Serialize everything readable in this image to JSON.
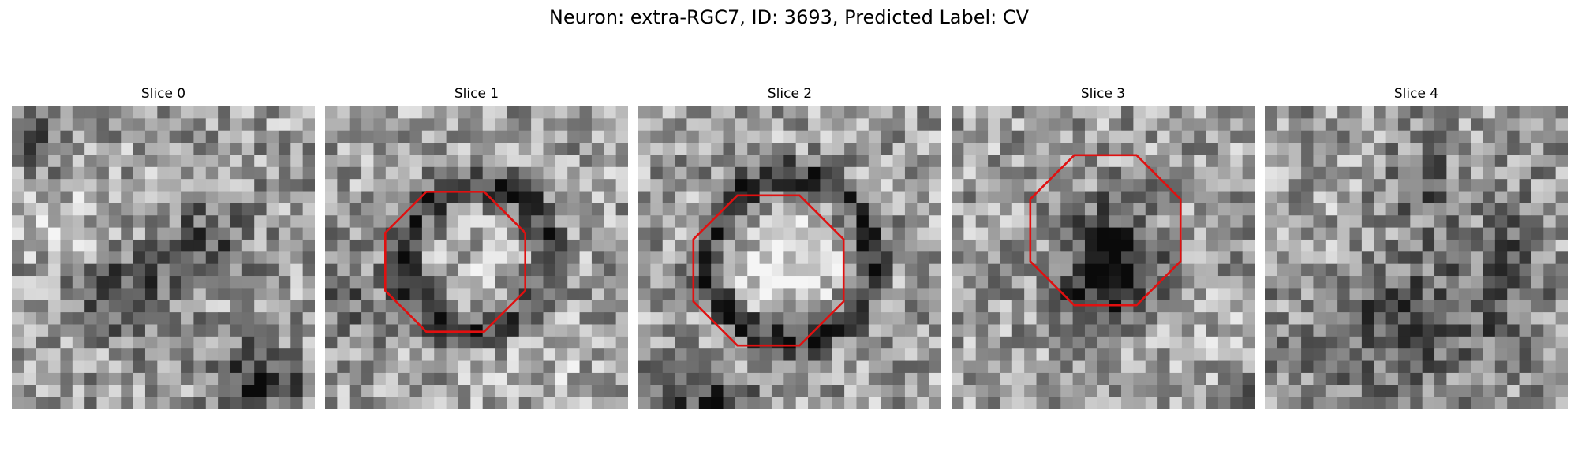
{
  "figure": {
    "title": "Neuron: extra-RGC7, ID: 3693, Predicted Label: CV"
  },
  "colors": {
    "roi_outline": "#e01010",
    "background": "#ffffff"
  },
  "slices": [
    {
      "label": "Slice 0",
      "has_roi": false,
      "pattern": "noise-dark-bottom"
    },
    {
      "label": "Slice 1",
      "has_roi": true,
      "pattern": "ring-dark-halo"
    },
    {
      "label": "Slice 2",
      "has_roi": true,
      "pattern": "ring-bright-center"
    },
    {
      "label": "Slice 3",
      "has_roi": true,
      "pattern": "dark-core"
    },
    {
      "label": "Slice 4",
      "has_roi": false,
      "pattern": "noise-dark-lower"
    }
  ]
}
